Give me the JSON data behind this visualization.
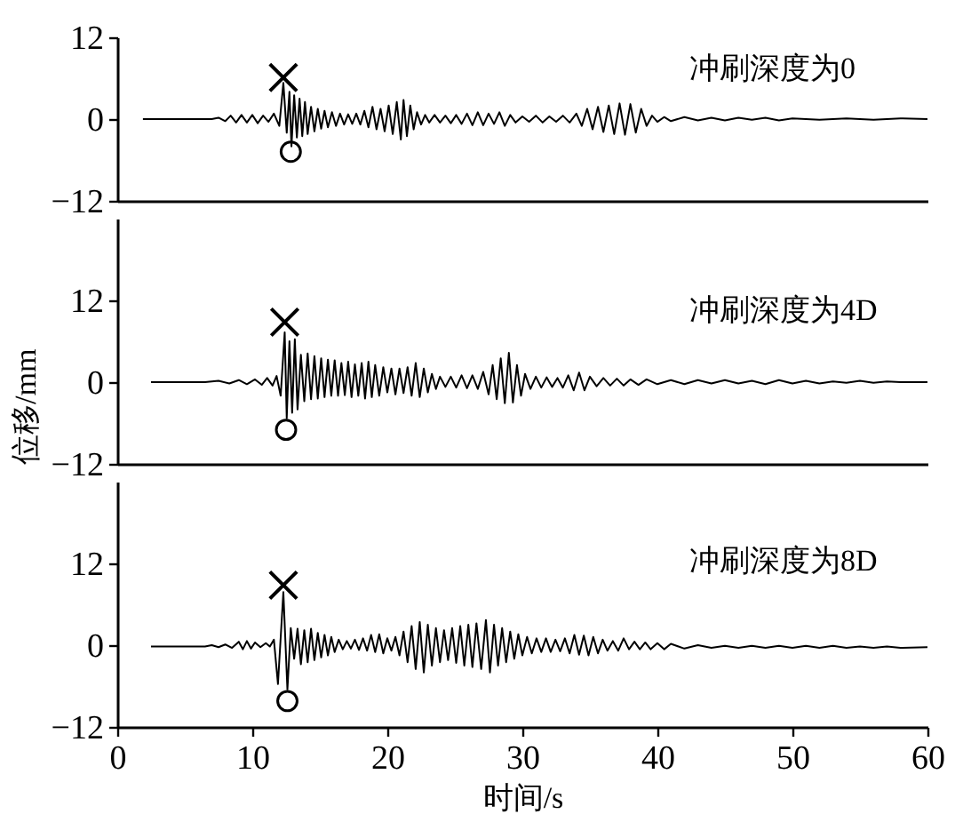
{
  "chart_data": [
    {
      "type": "line",
      "xlim": [
        0,
        60
      ],
      "ylim": [
        -12,
        12
      ],
      "yticks": [
        -12,
        0,
        12
      ],
      "tick_labels": "y",
      "series": [
        {
          "name": "冲刷深度为0",
          "color": "#000000",
          "x": [
            1.9,
            7,
            7.5,
            8,
            8.4,
            8.8,
            9.2,
            9.6,
            10,
            10.4,
            10.8,
            11.2,
            11.6,
            12.0,
            12.3,
            12.55,
            12.75,
            12.9,
            13.1,
            13.3,
            13.5,
            13.7,
            13.9,
            14.1,
            14.35,
            14.6,
            14.85,
            15.1,
            15.35,
            15.6,
            15.9,
            16.2,
            16.5,
            16.8,
            17.1,
            17.4,
            17.7,
            18.0,
            18.3,
            18.6,
            18.9,
            19.2,
            19.5,
            19.8,
            20.1,
            20.4,
            20.7,
            21.0,
            21.2,
            21.45,
            21.7,
            21.95,
            22.2,
            22.5,
            22.8,
            23.1,
            23.5,
            23.9,
            24.3,
            24.7,
            25.1,
            25.5,
            25.9,
            26.3,
            26.7,
            27.1,
            27.5,
            27.9,
            28.3,
            28.7,
            29.1,
            29.5,
            30,
            30.5,
            31,
            31.5,
            32,
            32.5,
            33,
            33.5,
            34,
            34.4,
            34.8,
            35.2,
            35.6,
            36.0,
            36.4,
            36.8,
            37.2,
            37.6,
            38.0,
            38.4,
            38.8,
            39.2,
            39.6,
            40.0,
            40.5,
            41,
            42,
            43,
            44,
            45,
            46,
            47,
            48,
            49,
            50,
            52,
            54,
            56,
            58,
            60
          ],
          "values": [
            0,
            0,
            0.2,
            -0.3,
            0.5,
            -0.5,
            0.6,
            -0.5,
            0.6,
            -0.6,
            0.5,
            -0.4,
            0.8,
            -1.0,
            5.3,
            -2.0,
            4.0,
            -4.0,
            3.5,
            -2.7,
            3.0,
            -2.5,
            2.5,
            -2.2,
            1.8,
            -1.8,
            1.5,
            -1.4,
            1.2,
            -1.2,
            1.0,
            -1.0,
            0.8,
            -0.8,
            0.7,
            -0.7,
            0.8,
            -0.8,
            1.2,
            -1.2,
            1.8,
            -1.5,
            1.5,
            -1.8,
            2.0,
            -2.2,
            2.5,
            -3.0,
            2.8,
            -2.5,
            2.0,
            -1.5,
            1.0,
            -0.8,
            0.6,
            -0.5,
            0.6,
            -0.5,
            0.5,
            -0.6,
            0.6,
            -0.7,
            0.8,
            -0.9,
            1.0,
            -0.9,
            0.8,
            -0.7,
            1.0,
            -1.0,
            0.6,
            -0.5,
            0.4,
            -0.4,
            0.5,
            -0.5,
            0.4,
            -0.4,
            0.5,
            -0.5,
            0.8,
            -1.0,
            1.5,
            -1.5,
            1.8,
            -1.9,
            2.0,
            -2.2,
            2.3,
            -2.3,
            2.2,
            -2.0,
            1.5,
            -1.0,
            0.5,
            -0.4,
            0.3,
            -0.3,
            0.3,
            -0.2,
            0.2,
            -0.2,
            0.2,
            -0.1,
            0.2,
            -0.2,
            0.1,
            -0.1,
            0.1,
            -0.1,
            0.1,
            0
          ]
        },
        {
          "type": "scatter",
          "marker": "cross",
          "color": "#000000",
          "x": [
            12.3
          ],
          "values": [
            6.1
          ]
        },
        {
          "type": "scatter",
          "marker": "circle",
          "color": "#000000",
          "x": [
            12.85
          ],
          "values": [
            -4.8
          ]
        }
      ]
    },
    {
      "type": "line",
      "xlim": [
        0,
        60
      ],
      "ylim": [
        -12,
        24
      ],
      "yticks": [
        -12,
        0,
        12
      ],
      "tick_labels": "y",
      "ylabel": "位移/mm",
      "series": [
        {
          "name": "冲刷深度为4D",
          "color": "#000000",
          "x": [
            2.5,
            6.5,
            7.5,
            8.3,
            9,
            9.6,
            10.2,
            10.7,
            11.1,
            11.5,
            11.8,
            12.1,
            12.4,
            12.55,
            12.75,
            12.95,
            13.15,
            13.35,
            13.6,
            13.85,
            14.1,
            14.35,
            14.6,
            14.85,
            15.1,
            15.35,
            15.6,
            15.85,
            16.1,
            16.35,
            16.6,
            16.85,
            17.1,
            17.35,
            17.6,
            17.85,
            18.1,
            18.35,
            18.6,
            18.85,
            19.1,
            19.4,
            19.7,
            20,
            20.3,
            20.6,
            20.9,
            21.2,
            21.5,
            21.8,
            22.1,
            22.4,
            22.7,
            23.0,
            23.3,
            23.6,
            23.9,
            24.3,
            24.7,
            25.1,
            25.5,
            25.9,
            26.3,
            26.7,
            27.1,
            27.5,
            27.8,
            28.1,
            28.4,
            28.7,
            29.0,
            29.3,
            29.6,
            29.9,
            30.2,
            30.6,
            31,
            31.4,
            31.8,
            32.2,
            32.6,
            33,
            33.4,
            33.8,
            34.2,
            34.6,
            35,
            35.5,
            36,
            36.5,
            37,
            37.5,
            38,
            38.6,
            39.2,
            40,
            41,
            42,
            43,
            44,
            45,
            46,
            47,
            48,
            49,
            50,
            51,
            52,
            53,
            54,
            55,
            56,
            57,
            58,
            60
          ],
          "values": [
            0,
            0,
            0.2,
            -0.2,
            0.3,
            -0.3,
            0.4,
            -0.4,
            0.6,
            -0.5,
            0.9,
            -2.0,
            7.3,
            -5.3,
            6.0,
            -4.5,
            6.3,
            -4.0,
            4.0,
            -2.8,
            4.2,
            -2.5,
            3.8,
            -2.4,
            3.5,
            -2.2,
            3.3,
            -2.0,
            3.2,
            -2.0,
            2.8,
            -1.9,
            3.0,
            -2.2,
            2.6,
            -2.0,
            2.8,
            -2.4,
            3.0,
            -2.2,
            2.5,
            -2.0,
            2.2,
            -1.5,
            2.0,
            -1.8,
            2.0,
            -1.6,
            2.2,
            -2.0,
            2.8,
            -2.2,
            2.0,
            -1.5,
            1.2,
            -1.0,
            0.8,
            -0.7,
            0.8,
            -0.8,
            1.0,
            -0.9,
            1.0,
            -1.0,
            1.5,
            -1.8,
            2.5,
            -2.5,
            3.5,
            -3.1,
            4.3,
            -3.0,
            2.5,
            -2.0,
            1.2,
            -1.0,
            0.8,
            -0.8,
            0.7,
            -0.7,
            0.6,
            -0.8,
            1.0,
            -1.2,
            1.4,
            -1.2,
            0.8,
            -0.6,
            0.6,
            -0.5,
            0.5,
            -0.5,
            0.4,
            -0.4,
            0.4,
            -0.3,
            0.3,
            -0.3,
            0.3,
            -0.2,
            0.3,
            -0.2,
            0.2,
            -0.3,
            0.3,
            -0.2,
            0.2,
            -0.2,
            0.1,
            -0.1,
            0.2,
            -0.1,
            0.1,
            0,
            0
          ]
        },
        {
          "type": "scatter",
          "marker": "cross",
          "color": "#000000",
          "x": [
            12.4
          ],
          "values": [
            8.8
          ]
        },
        {
          "type": "scatter",
          "marker": "circle",
          "color": "#000000",
          "x": [
            12.5
          ],
          "values": [
            -7.0
          ]
        }
      ]
    },
    {
      "type": "line",
      "xlim": [
        0,
        60
      ],
      "xticks": [
        0,
        10,
        20,
        30,
        40,
        50,
        60
      ],
      "ylim": [
        -12,
        24
      ],
      "yticks": [
        -12,
        0,
        12
      ],
      "xlabel": "时间/s",
      "series": [
        {
          "name": "冲刷深度为8D",
          "color": "#000000",
          "x": [
            2.5,
            6.5,
            7,
            7.5,
            8,
            8.5,
            9,
            9.3,
            9.6,
            9.9,
            10.2,
            10.6,
            11,
            11.3,
            11.6,
            11.9,
            12.3,
            12.6,
            12.85,
            13.1,
            13.35,
            13.6,
            13.85,
            14.1,
            14.35,
            14.6,
            14.85,
            15.1,
            15.35,
            15.6,
            15.85,
            16.1,
            16.4,
            16.7,
            17,
            17.3,
            17.6,
            17.9,
            18.2,
            18.5,
            18.8,
            19.1,
            19.4,
            19.7,
            20,
            20.3,
            20.6,
            20.9,
            21.2,
            21.5,
            21.8,
            22.1,
            22.4,
            22.7,
            23.0,
            23.3,
            23.6,
            23.9,
            24.2,
            24.5,
            24.8,
            25.1,
            25.4,
            25.7,
            26.0,
            26.3,
            26.6,
            26.95,
            27.3,
            27.6,
            27.9,
            28.2,
            28.5,
            28.8,
            29.1,
            29.4,
            29.7,
            30,
            30.35,
            30.7,
            31.05,
            31.4,
            31.75,
            32.1,
            32.45,
            32.8,
            33.15,
            33.5,
            33.85,
            34.2,
            34.55,
            34.9,
            35.25,
            35.6,
            35.95,
            36.3,
            36.7,
            37.1,
            37.5,
            37.9,
            38.3,
            38.7,
            39.1,
            39.5,
            40,
            40.5,
            41,
            42,
            43,
            44,
            45,
            46,
            47,
            48,
            49,
            50,
            51,
            52,
            53,
            54,
            55,
            56,
            57,
            58,
            60
          ],
          "values": [
            -0.2,
            -0.2,
            0,
            -0.3,
            0.1,
            -0.4,
            0.5,
            -0.6,
            0.6,
            -0.5,
            0.4,
            -0.3,
            0.3,
            -0.2,
            0.8,
            -5.7,
            7.8,
            -6.5,
            2.5,
            -2.0,
            2.4,
            -2.8,
            2.2,
            -2.5,
            2.4,
            -2.2,
            1.8,
            -1.8,
            1.5,
            -1.5,
            1.2,
            -1.0,
            0.8,
            -0.6,
            0.6,
            -0.5,
            0.8,
            -0.7,
            1.0,
            -0.8,
            1.5,
            -1.0,
            1.6,
            -1.2,
            1.0,
            -0.8,
            1.2,
            -1.5,
            2.0,
            -2.5,
            2.8,
            -3.5,
            3.4,
            -4.0,
            3.0,
            -3.0,
            2.5,
            -2.5,
            2.2,
            -2.2,
            2.5,
            -2.6,
            2.8,
            -3.0,
            3.0,
            -3.2,
            3.2,
            -3.5,
            3.7,
            -4.0,
            3.0,
            -3.0,
            2.5,
            -2.5,
            2.0,
            -2.0,
            1.6,
            -1.5,
            1.2,
            -1.2,
            1.0,
            -1.0,
            1.0,
            -1.0,
            0.8,
            -0.9,
            1.0,
            -1.2,
            1.5,
            -1.4,
            1.4,
            -1.5,
            1.2,
            -1.2,
            0.8,
            -0.8,
            0.6,
            -0.8,
            1.0,
            -0.6,
            0.5,
            -0.6,
            0.4,
            -0.6,
            0.3,
            -0.6,
            0.2,
            -0.5,
            0,
            -0.4,
            -0.1,
            -0.4,
            -0.1,
            -0.4,
            -0.1,
            -0.4,
            -0.1,
            -0.4,
            -0.1,
            -0.4,
            -0.2,
            -0.4,
            -0.2,
            -0.4,
            -0.3
          ]
        },
        {
          "type": "scatter",
          "marker": "cross",
          "color": "#000000",
          "x": [
            12.3
          ],
          "values": [
            8.8
          ]
        },
        {
          "type": "scatter",
          "marker": "circle",
          "color": "#000000",
          "x": [
            12.6
          ],
          "values": [
            -8.2
          ]
        }
      ]
    }
  ]
}
